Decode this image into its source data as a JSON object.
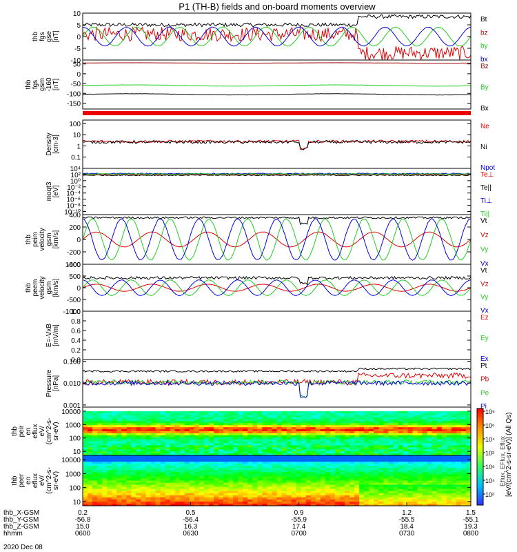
{
  "title": "P1 (TH-B) fields and on-board moments overview",
  "colors": {
    "black": "#000000",
    "red": "#dd0000",
    "green": "#22cc22",
    "blue": "#0000dd",
    "dark_red": "#990000",
    "frame": "#000000"
  },
  "chart_data": [
    {
      "type": "line",
      "panel": "fgs_gse",
      "ylabel": [
        "thb",
        "fgs",
        "gse",
        "[nT]"
      ],
      "ylim": [
        -10,
        10
      ],
      "yticks": [
        10,
        5,
        0,
        -5,
        -10
      ],
      "series": [
        {
          "name": "Bt",
          "color": "black",
          "style": "noisy",
          "level": 5,
          "amp": 0.8,
          "step_at": 0.71,
          "step_to": 8.5
        },
        {
          "name": "bz",
          "color": "red",
          "style": "noisy",
          "level": 1,
          "amp": 3.0,
          "step_at": 0.71,
          "step_to": -7
        },
        {
          "name": "by",
          "color": "green",
          "style": "wave",
          "level": 0,
          "amp": 4,
          "periods": 9
        },
        {
          "name": "bx",
          "color": "blue",
          "style": "wave",
          "level": 0,
          "amp": 4,
          "periods": 9,
          "phase": 1.5
        }
      ]
    },
    {
      "type": "line",
      "panel": "fgs_gsm",
      "ylabel": [
        "thb",
        "fgs",
        "gsm",
        "-160"
      ],
      "extra_label": "[nT]",
      "ylim": [
        -180,
        70
      ],
      "yticks": [
        50,
        0,
        -50,
        -100,
        -150
      ],
      "series": [
        {
          "name": "Bz",
          "color": "dark_red",
          "style": "flat",
          "level": 55,
          "amp": 1
        },
        {
          "name": "By",
          "color": "green",
          "style": "flat",
          "level": -60,
          "amp": 3
        },
        {
          "name": "Bx",
          "color": "black",
          "style": "flat",
          "level": -105,
          "amp": 3
        }
      ]
    },
    {
      "type": "line",
      "panel": "density",
      "log": true,
      "ylabel": [
        "Density",
        "[cm-3]"
      ],
      "ylim": [
        0.01,
        200
      ],
      "yticks": [
        100,
        10,
        1,
        0.1
      ],
      "ytick_labels": [
        "100",
        "10",
        "1",
        "0.1"
      ],
      "series": [
        {
          "name": "Ne",
          "color": "red",
          "style": "noisy",
          "level": 2.5,
          "amp": 0.25,
          "dip_at": 0.57
        },
        {
          "name": "Ni",
          "color": "black",
          "style": "noisy",
          "level": 2.2,
          "amp": 0.25,
          "dip_at": 0.57
        },
        {
          "name": "Npot",
          "color": "blue",
          "style": "none"
        }
      ]
    },
    {
      "type": "line",
      "panel": "temperature",
      "log": true,
      "ylabel": [
        "moqt3",
        "[eV]"
      ],
      "ylim": [
        1e-11,
        10000
      ],
      "yticks": [
        10000,
        100,
        1,
        0.01,
        0.0001,
        1e-06,
        1e-08,
        1e-10
      ],
      "ytick_labels": [
        "10⁴",
        "10²",
        "10⁰",
        "10⁻²",
        "10⁻⁴",
        "10⁻⁶",
        "10⁻⁸",
        "10⁻¹⁰"
      ],
      "series": [
        {
          "name": "Te⊥",
          "color": "red",
          "style": "noisy",
          "level": 100,
          "amp": 0.3
        },
        {
          "name": "Te||",
          "color": "black",
          "style": "noisy",
          "level": 60,
          "amp": 0.3
        },
        {
          "name": "Ti⊥",
          "color": "blue",
          "style": "noisy",
          "level": 200,
          "amp": 0.3
        },
        {
          "name": "Ti||",
          "color": "green",
          "style": "noisy",
          "level": 150,
          "amp": 0.3
        }
      ]
    },
    {
      "type": "line",
      "panel": "peim_velocity",
      "ylabel": [
        "thb",
        "peim",
        "velocity",
        "gsm",
        "[km/s]"
      ],
      "ylim": [
        -400,
        400
      ],
      "yticks": [
        400,
        200,
        0,
        -200,
        -400
      ],
      "series": [
        {
          "name": "Vt",
          "color": "black",
          "style": "noisy",
          "level": 350,
          "amp": 15,
          "dip_at": 0.57
        },
        {
          "name": "Vz",
          "color": "red",
          "style": "wave",
          "level": 0,
          "amp": 120,
          "periods": 7
        },
        {
          "name": "Vy",
          "color": "green",
          "style": "wave",
          "level": 0,
          "amp": 330,
          "periods": 10
        },
        {
          "name": "Vx",
          "color": "blue",
          "style": "wave",
          "level": 0,
          "amp": 330,
          "periods": 10,
          "phase": 1.6
        }
      ]
    },
    {
      "type": "line",
      "panel": "peem_velocity",
      "ylabel": [
        "thb",
        "peem",
        "velocity",
        "gsm",
        "[km/s]"
      ],
      "ylim": [
        -1000,
        1000
      ],
      "yticks": [
        1000,
        500,
        0,
        -500,
        -1000
      ],
      "series": [
        {
          "name": "Vt",
          "color": "black",
          "style": "noisy",
          "level": 420,
          "amp": 60,
          "dip_at": 0.57
        },
        {
          "name": "Vz",
          "color": "red",
          "style": "wave",
          "level": 0,
          "amp": 150,
          "periods": 7
        },
        {
          "name": "Vy",
          "color": "green",
          "style": "wave",
          "level": 0,
          "amp": 330,
          "periods": 10
        },
        {
          "name": "Vx",
          "color": "blue",
          "style": "wave",
          "level": 0,
          "amp": 330,
          "periods": 10,
          "phase": 1.6
        }
      ]
    },
    {
      "type": "line",
      "panel": "efield",
      "ylabel": [
        "E=-VxB",
        "[mV/m]"
      ],
      "ylim": [
        0,
        1
      ],
      "yticks": [
        1.0,
        0.8,
        0.6,
        0.4,
        0.2,
        0.0
      ],
      "ytick_labels": [
        "1.0",
        "0.8",
        "0.6",
        "0.4",
        "0.2",
        "0.0"
      ],
      "series": [
        {
          "name": "Ez",
          "color": "red",
          "style": "none"
        },
        {
          "name": "Ey",
          "color": "green",
          "style": "none"
        },
        {
          "name": "Ex",
          "color": "blue",
          "style": "none"
        }
      ]
    },
    {
      "type": "line",
      "panel": "pressure",
      "log": true,
      "ylabel": [
        "Pressure",
        "[nPa]"
      ],
      "ylim": [
        0.0008,
        0.12
      ],
      "yticks": [
        0.1,
        0.01,
        0.001
      ],
      "ytick_labels": [
        "0.100",
        "0.010",
        "0.001"
      ],
      "series": [
        {
          "name": "Pt",
          "color": "black",
          "style": "noisy",
          "level": 0.035,
          "amp": 0.08,
          "step_at": 0.71,
          "step_to": 0.045
        },
        {
          "name": "Pb",
          "color": "red",
          "style": "noisy",
          "level": 0.011,
          "amp": 0.25,
          "step_at": 0.71,
          "step_to": 0.022
        },
        {
          "name": "Pe",
          "color": "green",
          "style": "noisy",
          "level": 0.011,
          "amp": 0.2,
          "dip_at": 0.57
        },
        {
          "name": "Pi",
          "color": "blue",
          "style": "noisy",
          "level": 0.01,
          "amp": 0.2,
          "dip_at": 0.57
        }
      ]
    },
    {
      "type": "heatmap",
      "panel": "peir_spec",
      "log": true,
      "ylabel": [
        "thb",
        "peir",
        "en",
        "eflux",
        "eV/",
        "(cm^2-s-",
        "sr-eV)"
      ],
      "ylim": [
        5,
        20000
      ],
      "yticks": [
        10000,
        1000,
        100,
        10
      ],
      "ytick_labels": [
        "10000",
        "1000",
        "100",
        "10"
      ],
      "profile": "ion"
    },
    {
      "type": "heatmap",
      "panel": "peer_spec",
      "log": true,
      "ylabel": [
        "thb",
        "peer",
        "en",
        "eflux",
        "eV/",
        "(cm^2-s-",
        "sr-eV)"
      ],
      "ylim": [
        5,
        20000
      ],
      "yticks": [
        10000,
        1000,
        100,
        10
      ],
      "ytick_labels": [
        "10000",
        "1000",
        "100",
        "10"
      ],
      "profile": "electron"
    }
  ],
  "colorbar": {
    "ticks": [
      "10⁸",
      "10⁶",
      "10⁴",
      "10²",
      "10⁶",
      "10⁴",
      "10²"
    ],
    "label": "[eV/(cm^2-s-sr-eV)] (All Qs)",
    "overlay_label": "Eflux, EFlux, Eflux"
  },
  "xaxis": {
    "rows": [
      {
        "label": "thb_X-GSM",
        "values": [
          "0.2",
          "0.5",
          "0.9",
          "1.2",
          "1.5"
        ]
      },
      {
        "label": "thb_Y-GSM",
        "values": [
          "-56.8",
          "-56.4",
          "-55.9",
          "-55.5",
          "-55.1"
        ]
      },
      {
        "label": "thb_Z-GSM",
        "values": [
          "15.0",
          "16.3",
          "17.4",
          "18.4",
          "19.3"
        ]
      },
      {
        "label": "hhmm",
        "values": [
          "0600",
          "0630",
          "0700",
          "0730",
          "0800"
        ]
      }
    ],
    "date": "2020 Dec 08"
  }
}
